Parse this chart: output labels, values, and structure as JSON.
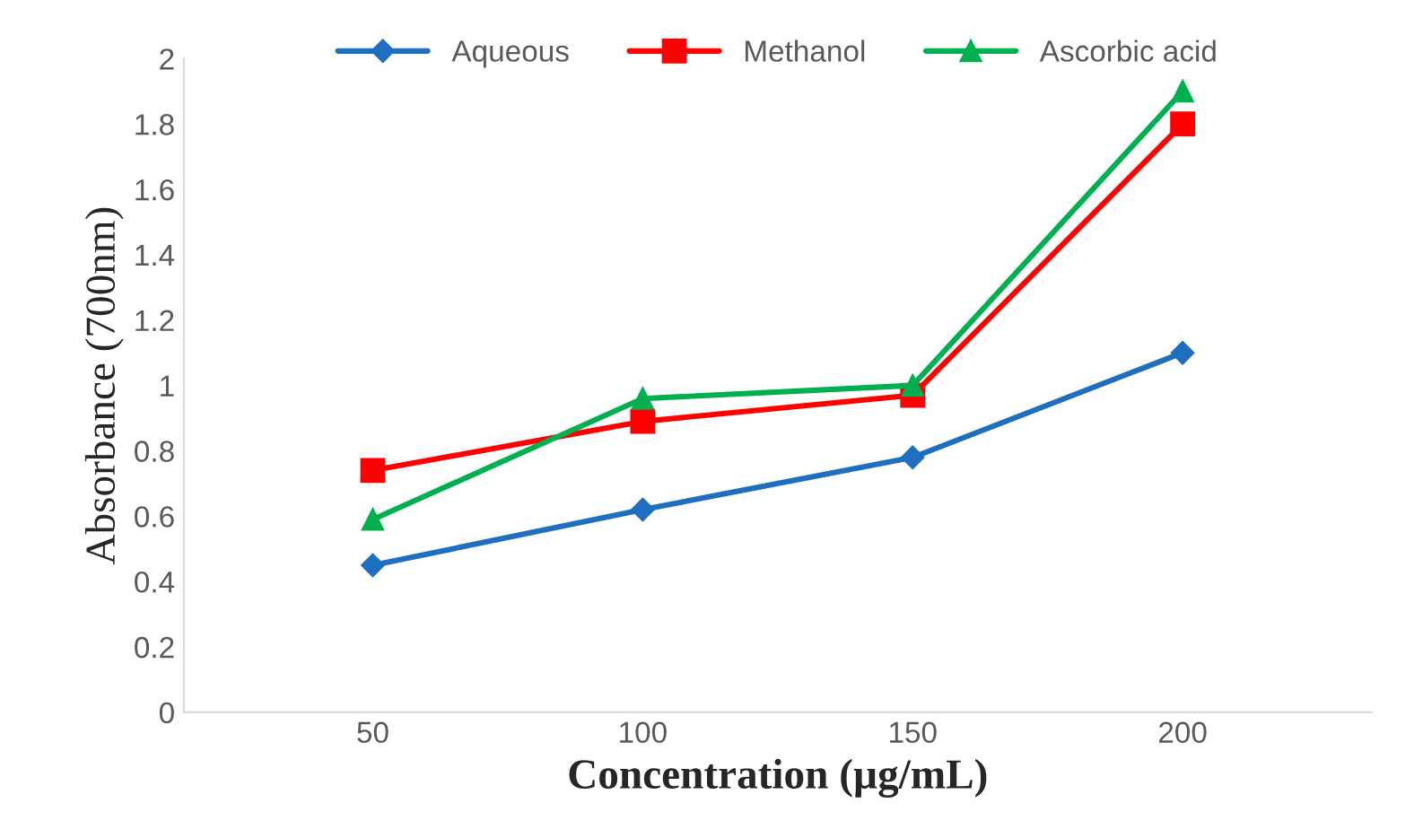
{
  "chart_data": {
    "type": "line",
    "xlabel": "Concentration (µg/mL)",
    "ylabel": "Absorbance (700nm)",
    "categories": [
      "50",
      "100",
      "150",
      "200"
    ],
    "series": [
      {
        "name": "Aqueous",
        "color": "#1f6fc0",
        "marker": "diamond",
        "values": [
          0.45,
          0.62,
          0.78,
          1.1
        ]
      },
      {
        "name": "Methanol",
        "color": "#ff0000",
        "marker": "square",
        "values": [
          0.74,
          0.89,
          0.97,
          1.8
        ]
      },
      {
        "name": "Ascorbic acid",
        "color": "#00b050",
        "marker": "triangle",
        "values": [
          0.59,
          0.96,
          1.0,
          1.9
        ]
      }
    ],
    "ylim": [
      0,
      2
    ],
    "yticks": [
      0,
      0.2,
      0.4,
      0.6,
      0.8,
      1,
      1.2,
      1.4,
      1.6,
      1.8,
      2
    ],
    "grid": false,
    "legend": "top",
    "line_style": "solid"
  }
}
